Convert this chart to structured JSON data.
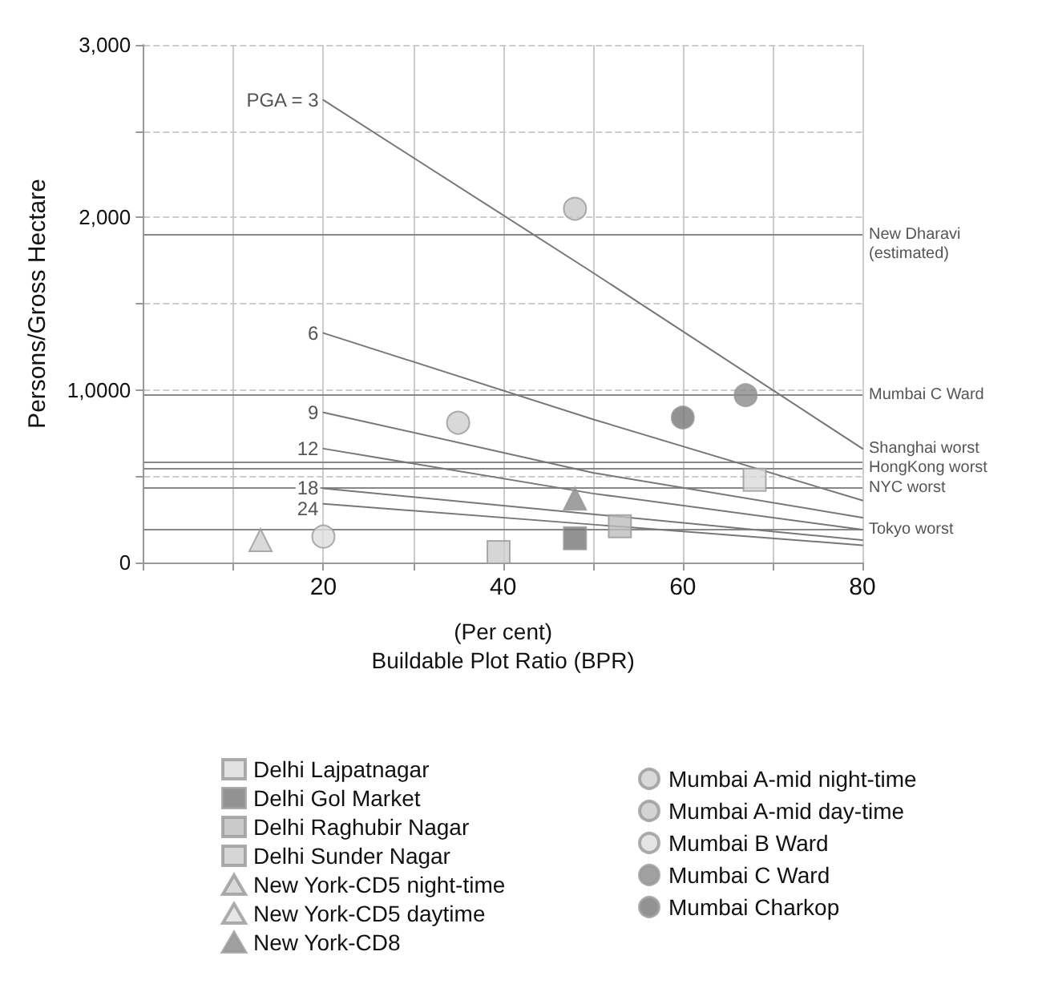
{
  "chart_data": {
    "type": "scatter",
    "xlabel": "(Per cent)\nBuildable Plot Ratio (BPR)",
    "ylabel": "Persons/Gross Hectare",
    "xlim": [
      0,
      80
    ],
    "xticks": [
      {
        "value": 0,
        "label": null
      },
      {
        "value": 10,
        "label": null
      },
      20,
      {
        "value": 30,
        "label": null
      },
      40,
      {
        "value": 50,
        "label": null
      },
      60,
      {
        "value": 70,
        "label": null
      },
      80
    ],
    "ylim": [
      0,
      3000
    ],
    "yticks": [
      0,
      {
        "value": 500,
        "label": null
      },
      {
        "value": 1000,
        "label": "1,0000"
      },
      {
        "value": 1500,
        "label": null
      },
      {
        "value": 2000,
        "label": "2,000"
      },
      {
        "value": 2500,
        "label": null
      },
      {
        "value": 3000,
        "label": "3,000"
      }
    ],
    "grid": true,
    "legend": "bottom",
    "series": [
      {
        "type": "line",
        "name": "PGA = 3",
        "color": "#777777",
        "x": [
          20,
          50,
          80
        ],
        "values": [
          2680,
          1680,
          660
        ]
      },
      {
        "type": "line",
        "name": "6",
        "color": "#777777",
        "x": [
          20,
          50,
          80
        ],
        "values": [
          1330,
          830,
          360
        ]
      },
      {
        "type": "line",
        "name": "9",
        "color": "#777777",
        "x": [
          20,
          50,
          80
        ],
        "values": [
          870,
          520,
          260
        ]
      },
      {
        "type": "line",
        "name": "12",
        "color": "#777777",
        "x": [
          20,
          50,
          80
        ],
        "values": [
          660,
          400,
          190
        ]
      },
      {
        "type": "line",
        "name": "18",
        "color": "#777777",
        "x": [
          20,
          50,
          80
        ],
        "values": [
          430,
          280,
          130
        ]
      },
      {
        "type": "line",
        "name": "24",
        "color": "#777777",
        "x": [
          20,
          50,
          80
        ],
        "values": [
          340,
          220,
          100
        ]
      },
      {
        "name": "Delhi Lajpatnagar",
        "color": "#d9d9d9",
        "marker": "square",
        "x": [
          68
        ],
        "values": [
          480
        ]
      },
      {
        "name": "Delhi Gol Market",
        "color": "#777777",
        "marker": "square",
        "x": [
          48
        ],
        "values": [
          140
        ]
      },
      {
        "name": "Delhi Raghubir Nagar",
        "color": "#bdbdbd",
        "marker": "square",
        "x": [
          53
        ],
        "values": [
          210
        ]
      },
      {
        "name": "Delhi Sunder Nagar",
        "color": "#cccccc",
        "marker": "square",
        "x": [
          39.5
        ],
        "values": [
          60
        ]
      },
      {
        "name": "New York-CD5 night-time",
        "color": "#d0d0d0",
        "marker": "triangle",
        "x": [
          13
        ],
        "values": [
          130
        ]
      },
      {
        "name": "New York-CD5 daytime",
        "color": "#e0e0e0",
        "marker": "triangle",
        "x": [
          null
        ],
        "values": [
          null
        ]
      },
      {
        "name": "New York-CD8",
        "color": "#888888",
        "marker": "triangle",
        "x": [
          48
        ],
        "values": [
          370
        ]
      },
      {
        "name": "Mumbai A-mid night-time",
        "color": "#d0d0d0",
        "marker": "circle",
        "x": [
          35
        ],
        "values": [
          810
        ]
      },
      {
        "name": "Mumbai A-mid day-time",
        "color": "#c8c8c8",
        "marker": "circle",
        "x": [
          48
        ],
        "values": [
          2050
        ]
      },
      {
        "name": "Mumbai B Ward",
        "color": "#dddddd",
        "marker": "circle",
        "x": [
          20
        ],
        "values": [
          150
        ]
      },
      {
        "name": "Mumbai C Ward",
        "color": "#8a8a8a",
        "marker": "circle",
        "x": [
          67
        ],
        "values": [
          970
        ]
      },
      {
        "name": "Mumbai Charkop",
        "color": "#777777",
        "marker": "circle",
        "x": [
          60
        ],
        "values": [
          840
        ]
      }
    ],
    "ref_lines": [
      {
        "axis": "y",
        "value": 1900,
        "label": "New Dharavi\n(estimated)",
        "color": "#888888"
      },
      {
        "axis": "y",
        "value": 970,
        "label": "Mumbai C Ward",
        "color": "#888888"
      },
      {
        "axis": "y",
        "value": 580,
        "label": "Shanghai worst",
        "color": "#888888"
      },
      {
        "axis": "y",
        "value": 550,
        "label": "HongKong worst",
        "color": "#888888"
      },
      {
        "axis": "y",
        "value": 430,
        "label": "NYC worst",
        "color": "#888888"
      },
      {
        "axis": "y",
        "value": 190,
        "label": "Tokyo worst",
        "color": "#888888"
      }
    ]
  }
}
